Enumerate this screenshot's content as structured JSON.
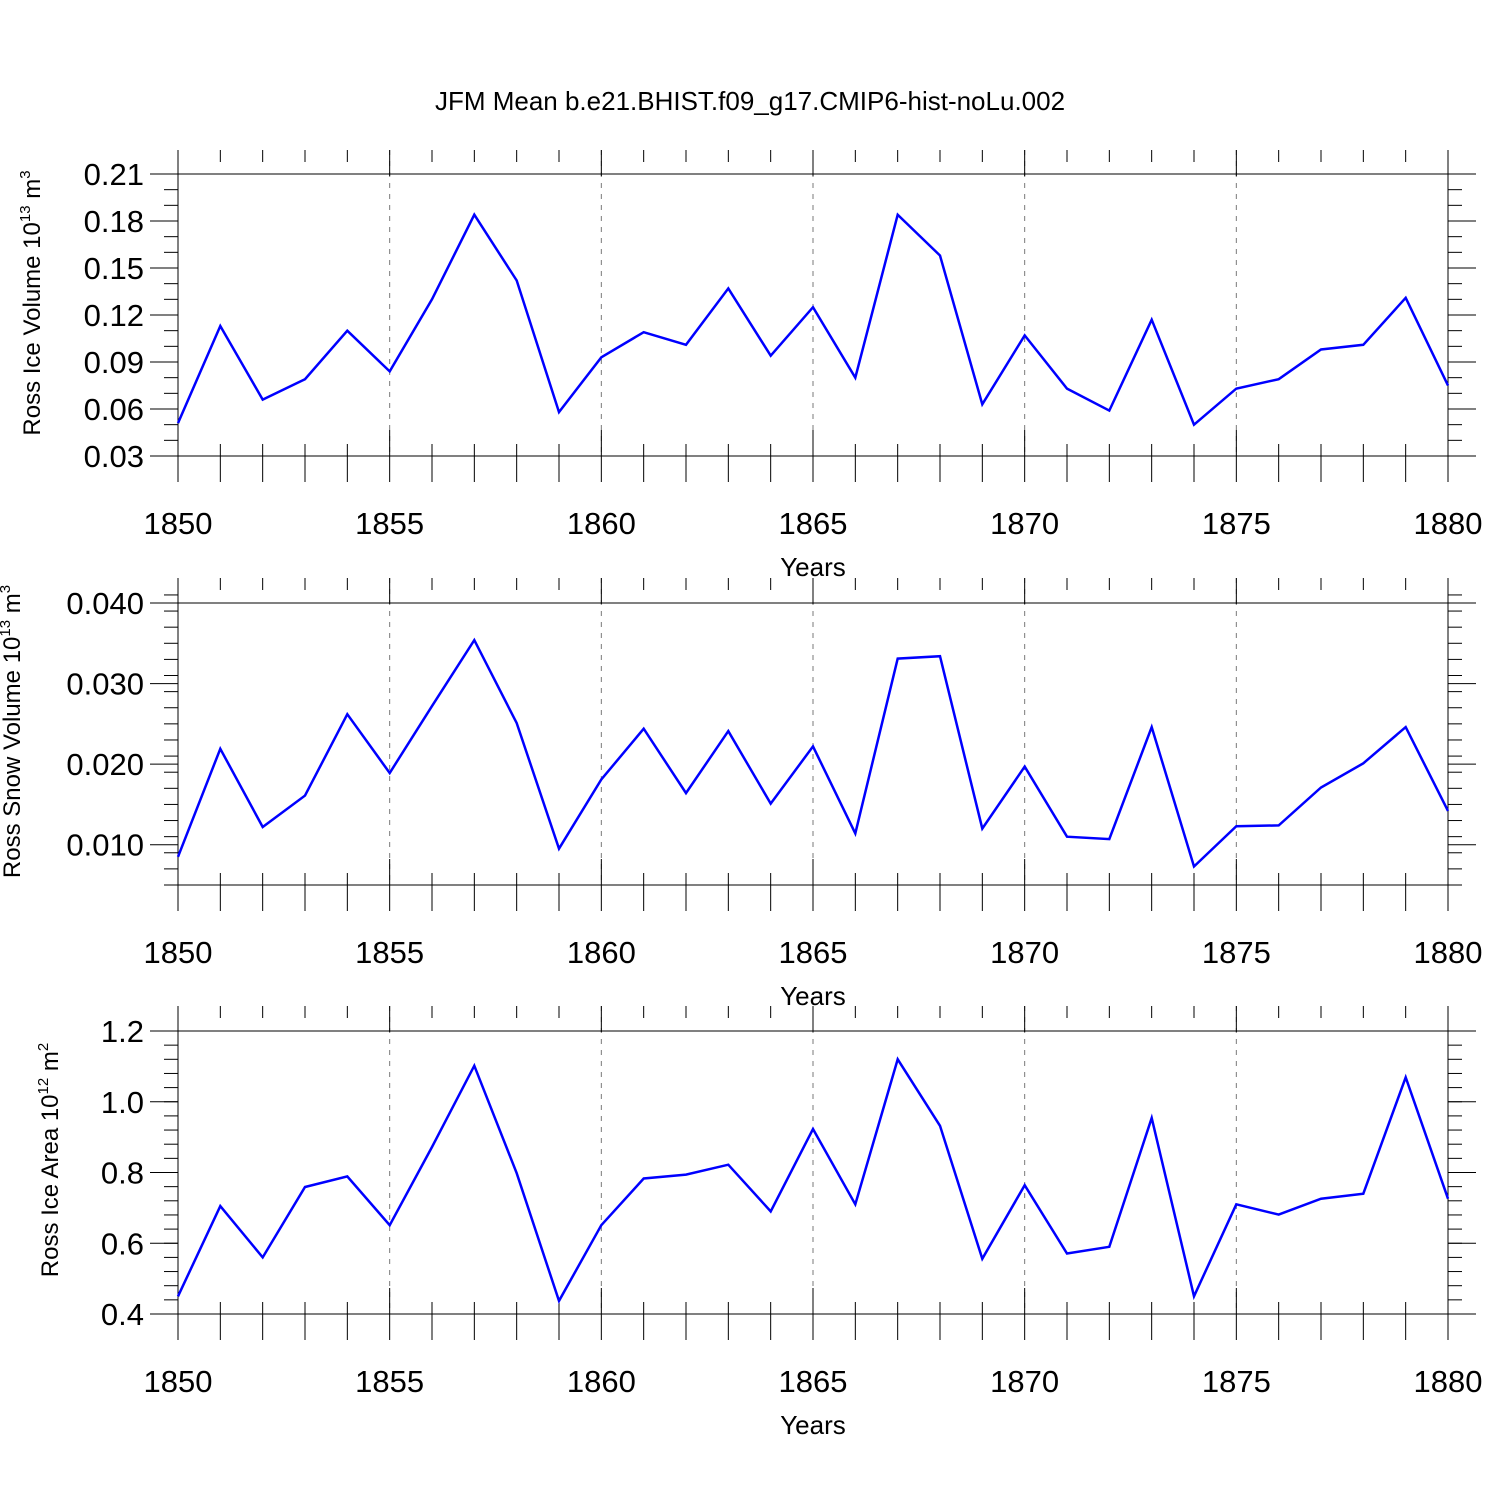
{
  "title": "JFM Mean b.e21.BHIST.f09_g17.CMIP6-hist-noLu.002",
  "chart_data": [
    {
      "type": "line",
      "ylabel_base": "Ross Ice Volume 10",
      "ylabel_exp": "13",
      "ylabel_unit": " m",
      "ylabel_unit_exp": "3",
      "xlabel": "Years",
      "xlim": [
        1850,
        1880
      ],
      "ylim": [
        0.03,
        0.21
      ],
      "x_ticks": [
        1850,
        1855,
        1860,
        1865,
        1870,
        1875,
        1880
      ],
      "x_tick_labels": [
        "1850",
        "1855",
        "1860",
        "1865",
        "1870",
        "1875",
        "1880"
      ],
      "y_ticks": [
        0.03,
        0.06,
        0.09,
        0.12,
        0.15,
        0.18,
        0.21
      ],
      "y_tick_labels": [
        "0.03",
        "0.06",
        "0.09",
        "0.12",
        "0.15",
        "0.18",
        "0.21"
      ],
      "y_minor_step": 0.01,
      "color": "#0000ff",
      "series": [
        {
          "name": "Ross Ice Volume",
          "x": [
            1850,
            1851,
            1852,
            1853,
            1854,
            1855,
            1856,
            1857,
            1858,
            1859,
            1860,
            1861,
            1862,
            1863,
            1864,
            1865,
            1866,
            1867,
            1868,
            1869,
            1870,
            1871,
            1872,
            1873,
            1874,
            1875,
            1876,
            1877,
            1878,
            1879,
            1880
          ],
          "values": [
            0.051,
            0.113,
            0.066,
            0.079,
            0.11,
            0.084,
            0.13,
            0.184,
            0.142,
            0.058,
            0.093,
            0.109,
            0.101,
            0.137,
            0.094,
            0.125,
            0.08,
            0.184,
            0.158,
            0.063,
            0.107,
            0.073,
            0.059,
            0.117,
            0.05,
            0.073,
            0.079,
            0.098,
            0.101,
            0.131,
            0.075
          ]
        }
      ]
    },
    {
      "type": "line",
      "ylabel_base": "Ross Snow Volume 10",
      "ylabel_exp": "13",
      "ylabel_unit": " m",
      "ylabel_unit_exp": "3",
      "xlabel": "Years",
      "xlim": [
        1850,
        1880
      ],
      "ylim": [
        0.005,
        0.04
      ],
      "x_ticks": [
        1850,
        1855,
        1860,
        1865,
        1870,
        1875,
        1880
      ],
      "x_tick_labels": [
        "1850",
        "1855",
        "1860",
        "1865",
        "1870",
        "1875",
        "1880"
      ],
      "y_ticks": [
        0.01,
        0.02,
        0.03,
        0.04
      ],
      "y_tick_labels": [
        "0.010",
        "0.020",
        "0.030",
        "0.040"
      ],
      "y_minor_step": 0.002,
      "color": "#0000ff",
      "series": [
        {
          "name": "Ross Snow Volume",
          "x": [
            1850,
            1851,
            1852,
            1853,
            1854,
            1855,
            1856,
            1857,
            1858,
            1859,
            1860,
            1861,
            1862,
            1863,
            1864,
            1865,
            1866,
            1867,
            1868,
            1869,
            1870,
            1871,
            1872,
            1873,
            1874,
            1875,
            1876,
            1877,
            1878,
            1879,
            1880
          ],
          "values": [
            0.0085,
            0.0219,
            0.0122,
            0.0161,
            0.0262,
            0.0189,
            0.0272,
            0.0354,
            0.0251,
            0.0095,
            0.0181,
            0.0244,
            0.0164,
            0.0241,
            0.0151,
            0.0222,
            0.0114,
            0.0331,
            0.0334,
            0.012,
            0.0197,
            0.011,
            0.0107,
            0.0246,
            0.0073,
            0.0123,
            0.0124,
            0.0171,
            0.0201,
            0.0246,
            0.0142
          ]
        }
      ]
    },
    {
      "type": "line",
      "ylabel_base": "Ross Ice Area 10",
      "ylabel_exp": "12",
      "ylabel_unit": " m",
      "ylabel_unit_exp": "2",
      "xlabel": "Years",
      "xlim": [
        1850,
        1880
      ],
      "ylim": [
        0.4,
        1.2
      ],
      "x_ticks": [
        1850,
        1855,
        1860,
        1865,
        1870,
        1875,
        1880
      ],
      "x_tick_labels": [
        "1850",
        "1855",
        "1860",
        "1865",
        "1870",
        "1875",
        "1880"
      ],
      "y_ticks": [
        0.4,
        0.6,
        0.8,
        1.0,
        1.2
      ],
      "y_tick_labels": [
        "0.4",
        "0.6",
        "0.8",
        "1.0",
        "1.2"
      ],
      "y_minor_step": 0.04,
      "color": "#0000ff",
      "series": [
        {
          "name": "Ross Ice Area",
          "x": [
            1850,
            1851,
            1852,
            1853,
            1854,
            1855,
            1856,
            1857,
            1858,
            1859,
            1860,
            1861,
            1862,
            1863,
            1864,
            1865,
            1866,
            1867,
            1868,
            1869,
            1870,
            1871,
            1872,
            1873,
            1874,
            1875,
            1876,
            1877,
            1878,
            1879,
            1880
          ],
          "values": [
            0.45,
            0.705,
            0.56,
            0.759,
            0.789,
            0.651,
            0.872,
            1.102,
            0.798,
            0.437,
            0.651,
            0.783,
            0.794,
            0.822,
            0.69,
            0.923,
            0.71,
            1.12,
            0.932,
            0.556,
            0.764,
            0.571,
            0.59,
            0.954,
            0.45,
            0.71,
            0.681,
            0.726,
            0.74,
            1.069,
            0.726
          ]
        }
      ]
    }
  ]
}
